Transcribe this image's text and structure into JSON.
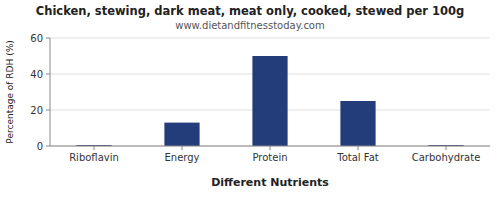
{
  "chart_data": {
    "type": "bar",
    "title": "Chicken, stewing, dark meat, meat only, cooked, stewed per 100g",
    "subtitle": "www.dietandfitnesstoday.com",
    "xlabel": "Different Nutrients",
    "ylabel": "Percentage of RDH (%)",
    "categories": [
      "Riboflavin",
      "Energy",
      "Protein",
      "Total Fat",
      "Carbohydrate"
    ],
    "values": [
      0.5,
      13,
      50,
      25,
      0.5
    ],
    "color": "#233d7b",
    "ylim": [
      0,
      60
    ],
    "yticks": [
      0,
      20,
      40,
      60
    ],
    "grid": true
  }
}
